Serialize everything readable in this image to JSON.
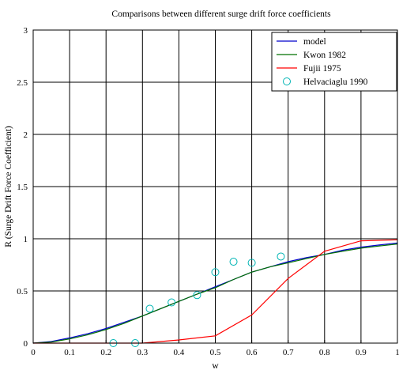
{
  "chart_data": {
    "type": "line",
    "title": "Comparisons between different surge drift force coefficients",
    "xlabel": "w",
    "ylabel": "R (Surge Drift Force Coefficient)",
    "xlim": [
      0,
      1
    ],
    "ylim": [
      0,
      3
    ],
    "xticks": [
      "0",
      "0.1",
      "0.2",
      "0.3",
      "0.4",
      "0.5",
      "0.6",
      "0.7",
      "0.8",
      "0.9",
      "1"
    ],
    "yticks": [
      "0",
      "0.5",
      "1",
      "1.5",
      "2",
      "2.5",
      "3"
    ],
    "grid": true,
    "legend_position": "top-right",
    "series": [
      {
        "name": "model",
        "style": "line",
        "color": "#0000cc",
        "x": [
          0,
          0.05,
          0.1,
          0.15,
          0.2,
          0.25,
          0.3,
          0.35,
          0.4,
          0.45,
          0.5,
          0.55,
          0.6,
          0.65,
          0.7,
          0.75,
          0.8,
          0.85,
          0.9,
          0.95,
          1.0
        ],
        "y": [
          0,
          0.015,
          0.05,
          0.09,
          0.14,
          0.2,
          0.26,
          0.33,
          0.4,
          0.47,
          0.54,
          0.61,
          0.68,
          0.73,
          0.78,
          0.82,
          0.85,
          0.89,
          0.92,
          0.94,
          0.96
        ]
      },
      {
        "name": "Kwon 1982",
        "style": "line",
        "color": "#007000",
        "x": [
          0,
          0.05,
          0.1,
          0.15,
          0.2,
          0.25,
          0.3,
          0.35,
          0.4,
          0.45,
          0.5,
          0.55,
          0.6,
          0.65,
          0.7,
          0.75,
          0.8,
          0.85,
          0.9,
          0.95,
          1.0
        ],
        "y": [
          0,
          0.01,
          0.04,
          0.08,
          0.13,
          0.19,
          0.26,
          0.33,
          0.4,
          0.47,
          0.53,
          0.61,
          0.68,
          0.73,
          0.77,
          0.81,
          0.85,
          0.88,
          0.91,
          0.93,
          0.95
        ]
      },
      {
        "name": "Fujii 1975",
        "style": "line",
        "color": "#ff0000",
        "x": [
          0,
          0.3,
          0.4,
          0.5,
          0.6,
          0.7,
          0.8,
          0.9,
          1.0
        ],
        "y": [
          0,
          0,
          0.03,
          0.07,
          0.27,
          0.62,
          0.88,
          0.98,
          0.99
        ]
      },
      {
        "name": "Helvaciaglu 1990",
        "style": "marker",
        "marker": "circle",
        "color": "#00b4b4",
        "x": [
          0.22,
          0.28,
          0.32,
          0.38,
          0.45,
          0.5,
          0.55,
          0.6,
          0.68
        ],
        "y": [
          0.0,
          0.0,
          0.33,
          0.39,
          0.46,
          0.68,
          0.78,
          0.77,
          0.83
        ]
      }
    ]
  }
}
